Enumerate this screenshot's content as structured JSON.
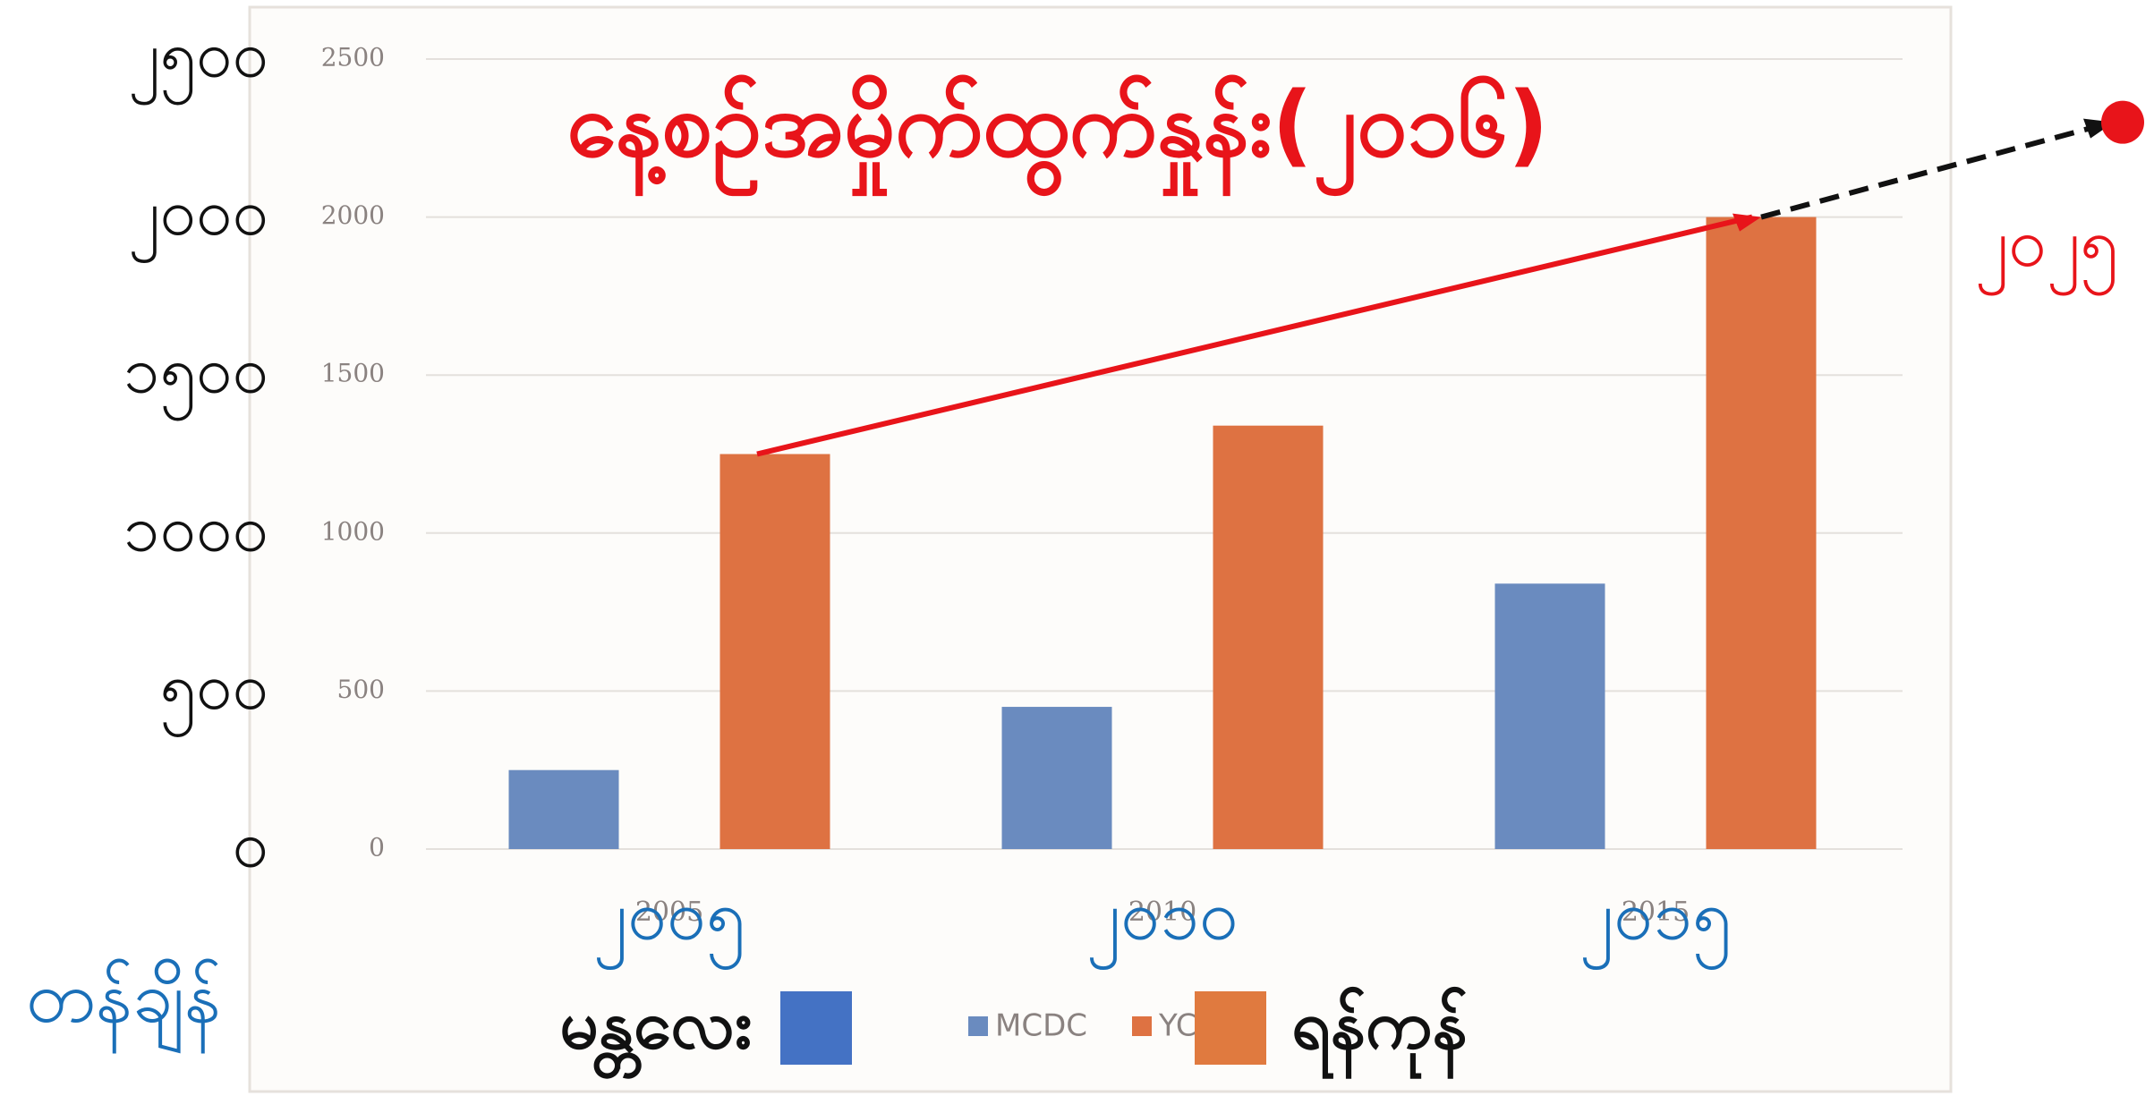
{
  "chart_data": {
    "type": "bar",
    "title": "နေ့စဉ်အမှိုက်ထွက်နှုန်း(၂၀၁၆)",
    "y_unit_label": "တန်ချိန်",
    "categories": [
      "2005",
      "2010",
      "2015"
    ],
    "category_labels_overlay": [
      "၂၀၀၅",
      "၂၀၁၀",
      "၂၀၁၅"
    ],
    "series": [
      {
        "name": "MCDC",
        "color": "#6a8bbf",
        "values": [
          250,
          450,
          840
        ]
      },
      {
        "name": "YCDC",
        "color": "#de7242",
        "values": [
          1250,
          1340,
          2000
        ]
      }
    ],
    "legend_overlay": [
      {
        "label": "မန္တလေး",
        "color": "#4472c4"
      },
      {
        "label": "ရန်ကုန်",
        "color": "#e07a3f"
      }
    ],
    "ylim": [
      0,
      2500
    ],
    "yticks": [
      0,
      500,
      1000,
      1500,
      2000,
      2500
    ],
    "yticks_overlay": [
      {
        "value": 0,
        "label": "၀"
      },
      {
        "value": 500,
        "label": "၅၀၀"
      },
      {
        "value": 1000,
        "label": "၁၀၀၀"
      },
      {
        "value": 1500,
        "label": "၁၅၀၀"
      },
      {
        "value": 2000,
        "label": "၂၀၀၀"
      },
      {
        "value": 2500,
        "label": "၂၅၀၀"
      }
    ],
    "projection": {
      "label": "၂၀၂၅",
      "value": 2300,
      "color": "#e8141a"
    },
    "trend_color": "#e8141a",
    "grid": true,
    "legend": "bottom"
  }
}
